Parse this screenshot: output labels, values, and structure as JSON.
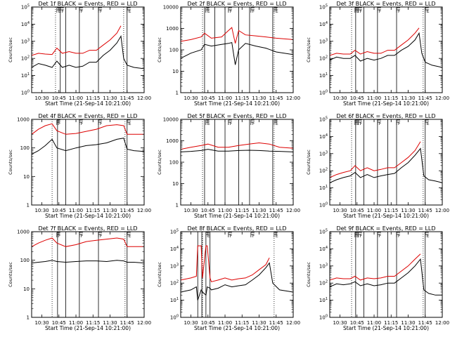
{
  "chart_data": [
    {
      "type": "line",
      "title": "Det 1f BLACK = Events, RED = LLD",
      "xlabel": "Start Time (21-Sep-14 10:21:00)",
      "ylabel": "Counts/sec",
      "log_y": true,
      "xlim": [
        10.35,
        12.0
      ],
      "ylim": [
        1,
        100000
      ],
      "x_ticks": [
        "10:30",
        "10:45",
        "11:00",
        "11:15",
        "11:30",
        "11:45",
        "12:00"
      ],
      "y_ticks": [
        "10^0",
        "10^1",
        "10^2",
        "10^3",
        "10^4",
        "10^5"
      ],
      "dotted_lines": [
        10.7,
        11.7
      ],
      "vertical_lines": [
        10.77,
        10.85,
        11.05,
        11.33,
        11.75
      ],
      "flag_markers": [
        {
          "x": 10.72,
          "label": "E"
        },
        {
          "x": 10.77,
          "label": "F"
        },
        {
          "x": 11.05,
          "label": "F"
        },
        {
          "x": 11.33,
          "label": "F"
        },
        {
          "x": 11.75,
          "label": "E"
        }
      ],
      "x": [
        10.35,
        10.45,
        10.55,
        10.65,
        10.72,
        10.8,
        10.9,
        11.0,
        11.1,
        11.2,
        11.3,
        11.4,
        11.5,
        11.6,
        11.66,
        11.7,
        11.75,
        11.85,
        12.0
      ],
      "series": [
        {
          "color": "#000000",
          "values": [
            30,
            50,
            40,
            30,
            70,
            30,
            40,
            30,
            35,
            60,
            60,
            150,
            300,
            800,
            2000,
            100,
            40,
            30,
            25
          ]
        },
        {
          "color": "#dd0000",
          "values": [
            150,
            200,
            180,
            170,
            400,
            200,
            250,
            200,
            200,
            300,
            300,
            600,
            1200,
            3000,
            8000,
            null,
            null,
            null,
            null
          ]
        }
      ]
    },
    {
      "type": "line",
      "title": "Det 2f BLACK = Events, RED = LLD",
      "xlabel": "Start Time (21-Sep-14 10:21:00)",
      "ylabel": "Counts/sec",
      "log_y": true,
      "xlim": [
        10.35,
        12.0
      ],
      "ylim": [
        1,
        10000
      ],
      "x_ticks": [
        "10:30",
        "10:45",
        "11:00",
        "11:15",
        "11:30",
        "11:45",
        "12:00"
      ],
      "y_ticks": [
        "1",
        "10",
        "100",
        "1000",
        "10000"
      ],
      "dotted_lines": [
        10.67,
        11.72
      ],
      "vertical_lines": [
        10.7,
        10.85,
        11.0,
        11.2,
        11.36,
        11.7
      ],
      "flag_markers": [
        {
          "x": 10.72,
          "label": "E"
        },
        {
          "x": 11.05,
          "label": "F"
        },
        {
          "x": 11.38,
          "label": "F"
        },
        {
          "x": 11.72,
          "label": "E"
        }
      ],
      "x": [
        10.35,
        10.5,
        10.65,
        10.7,
        10.8,
        10.95,
        11.05,
        11.1,
        11.15,
        11.2,
        11.3,
        11.45,
        11.6,
        11.75,
        12.0
      ],
      "series": [
        {
          "color": "#000000",
          "values": [
            40,
            70,
            100,
            180,
            150,
            180,
            200,
            220,
            20,
            100,
            200,
            150,
            120,
            80,
            60
          ]
        },
        {
          "color": "#dd0000",
          "values": [
            250,
            300,
            400,
            600,
            350,
            400,
            800,
            1100,
            200,
            800,
            500,
            450,
            400,
            350,
            300
          ]
        }
      ]
    },
    {
      "type": "line",
      "title": "Det 3f BLACK = Events, RED = LLD",
      "xlabel": "Start Time (21-Sep-14 10:21:00)",
      "ylabel": "Counts/sec",
      "log_y": true,
      "xlim": [
        10.35,
        12.0
      ],
      "ylim": [
        1,
        100000
      ],
      "x_ticks": [
        "10:30",
        "10:45",
        "11:00",
        "11:15",
        "11:30",
        "11:45",
        "12:00"
      ],
      "y_ticks": [
        "10^0",
        "10^1",
        "10^2",
        "10^3",
        "10^4",
        "10^5"
      ],
      "dotted_lines": [
        10.67,
        11.72
      ],
      "vertical_lines": [
        10.73,
        10.85,
        11.05,
        11.33,
        11.75
      ],
      "flag_markers": [
        {
          "x": 10.72,
          "label": "E"
        },
        {
          "x": 10.77,
          "label": "F"
        },
        {
          "x": 11.05,
          "label": "F"
        },
        {
          "x": 11.33,
          "label": "F"
        },
        {
          "x": 11.75,
          "label": "E"
        }
      ],
      "x": [
        10.35,
        10.45,
        10.55,
        10.65,
        10.72,
        10.8,
        10.9,
        11.0,
        11.1,
        11.2,
        11.3,
        11.4,
        11.5,
        11.6,
        11.66,
        11.7,
        11.75,
        11.85,
        12.0
      ],
      "series": [
        {
          "color": "#000000",
          "values": [
            80,
            120,
            100,
            100,
            150,
            70,
            100,
            80,
            100,
            150,
            150,
            300,
            500,
            1200,
            3000,
            200,
            60,
            40,
            30
          ]
        },
        {
          "color": "#dd0000",
          "values": [
            150,
            200,
            180,
            180,
            300,
            180,
            250,
            200,
            200,
            300,
            300,
            600,
            1200,
            3000,
            6000,
            null,
            null,
            null,
            null
          ]
        }
      ]
    },
    {
      "type": "line",
      "title": "Det 4f BLACK = Events, RED = LLD",
      "xlabel": "Start Time (21-Sep-14 10:21:00)",
      "ylabel": "Counts/sec",
      "log_y": true,
      "xlim": [
        10.35,
        12.0
      ],
      "ylim": [
        1,
        1000
      ],
      "x_ticks": [
        "10:30",
        "10:45",
        "11:00",
        "11:15",
        "11:30",
        "11:45",
        "12:00"
      ],
      "y_ticks": [
        "1",
        "10",
        "100",
        "1000"
      ],
      "dotted_lines": [
        10.65,
        11.72
      ],
      "vertical_lines": [
        10.73,
        10.85,
        11.05,
        11.33,
        11.75
      ],
      "flag_markers": [
        {
          "x": 10.72,
          "label": "F"
        },
        {
          "x": 11.05,
          "label": "F"
        },
        {
          "x": 11.33,
          "label": "F"
        },
        {
          "x": 11.75,
          "label": "E"
        }
      ],
      "x": [
        10.35,
        10.45,
        10.55,
        10.65,
        10.72,
        10.85,
        11.0,
        11.15,
        11.3,
        11.45,
        11.6,
        11.7,
        11.75,
        11.85,
        12.0
      ],
      "series": [
        {
          "color": "#000000",
          "values": [
            60,
            80,
            120,
            200,
            100,
            80,
            100,
            120,
            130,
            150,
            200,
            220,
            90,
            80,
            75
          ]
        },
        {
          "color": "#dd0000",
          "values": [
            300,
            450,
            600,
            700,
            400,
            300,
            320,
            380,
            450,
            600,
            650,
            600,
            300,
            300,
            300
          ]
        }
      ]
    },
    {
      "type": "line",
      "title": "Det 5f BLACK = Events, RED = LLD",
      "xlabel": "Start Time (21-Sep-14 10:21:00)",
      "ylabel": "Counts/sec",
      "log_y": true,
      "xlim": [
        10.35,
        12.0
      ],
      "ylim": [
        1,
        10000
      ],
      "x_ticks": [
        "10:30",
        "10:45",
        "11:00",
        "11:15",
        "11:30",
        "11:45",
        "12:00"
      ],
      "y_ticks": [
        "1",
        "10",
        "100",
        "1000",
        "10000"
      ],
      "dotted_lines": [
        10.67,
        11.72
      ],
      "vertical_lines": [
        10.7,
        10.85,
        11.0,
        11.2,
        11.36,
        11.7
      ],
      "flag_markers": [
        {
          "x": 10.72,
          "label": "E"
        },
        {
          "x": 11.05,
          "label": "F"
        },
        {
          "x": 11.38,
          "label": "F"
        },
        {
          "x": 11.72,
          "label": "E"
        }
      ],
      "x": [
        10.35,
        10.5,
        10.65,
        10.75,
        10.9,
        11.05,
        11.2,
        11.35,
        11.5,
        11.65,
        11.8,
        12.0
      ],
      "series": [
        {
          "color": "#000000",
          "values": [
            300,
            320,
            350,
            400,
            330,
            330,
            350,
            360,
            350,
            330,
            320,
            300
          ]
        },
        {
          "color": "#dd0000",
          "values": [
            400,
            500,
            600,
            700,
            500,
            500,
            600,
            700,
            800,
            700,
            500,
            450
          ]
        }
      ]
    },
    {
      "type": "line",
      "title": "Det 6f BLACK = Events, RED = LLD",
      "xlabel": "Start Time (21-Sep-14 10:21:00)",
      "ylabel": "Counts/sec",
      "log_y": true,
      "xlim": [
        10.35,
        12.0
      ],
      "ylim": [
        1,
        100000
      ],
      "x_ticks": [
        "10:30",
        "10:45",
        "11:00",
        "11:15",
        "11:30",
        "11:45",
        "12:00"
      ],
      "y_ticks": [
        "10^0",
        "10^1",
        "10^2",
        "10^3",
        "10^4",
        "10^5"
      ],
      "dotted_lines": [
        10.67,
        11.72
      ],
      "vertical_lines": [
        10.73,
        10.85,
        11.05,
        11.2,
        11.33,
        11.75
      ],
      "flag_markers": [
        {
          "x": 10.72,
          "label": "E"
        },
        {
          "x": 10.77,
          "label": "F"
        },
        {
          "x": 11.05,
          "label": "F"
        },
        {
          "x": 11.33,
          "label": "F"
        },
        {
          "x": 11.75,
          "label": "E"
        }
      ],
      "x": [
        10.35,
        10.45,
        10.55,
        10.65,
        10.72,
        10.8,
        10.9,
        11.0,
        11.1,
        11.2,
        11.3,
        11.4,
        11.5,
        11.6,
        11.68,
        11.73,
        11.8,
        11.9,
        12.0
      ],
      "series": [
        {
          "color": "#000000",
          "values": [
            20,
            30,
            40,
            50,
            80,
            40,
            60,
            40,
            50,
            60,
            70,
            150,
            300,
            800,
            2000,
            50,
            30,
            25,
            20
          ]
        },
        {
          "color": "#dd0000",
          "values": [
            40,
            60,
            80,
            100,
            200,
            100,
            150,
            100,
            120,
            150,
            150,
            300,
            600,
            1500,
            5000,
            null,
            null,
            null,
            null
          ]
        }
      ]
    },
    {
      "type": "line",
      "title": "Det 7f BLACK = Events, RED = LLD",
      "xlabel": "Start Time (21-Sep-14 10:21:00)",
      "ylabel": "Counts/sec",
      "log_y": true,
      "xlim": [
        10.35,
        12.0
      ],
      "ylim": [
        1,
        1000
      ],
      "x_ticks": [
        "10:30",
        "10:45",
        "11:00",
        "11:15",
        "11:30",
        "11:45",
        "12:00"
      ],
      "y_ticks": [
        "1",
        "10",
        "100",
        "1000"
      ],
      "dotted_lines": [
        10.65,
        11.72
      ],
      "vertical_lines": [
        10.73,
        10.85,
        11.05,
        11.33,
        11.75
      ],
      "flag_markers": [
        {
          "x": 10.72,
          "label": "F"
        },
        {
          "x": 11.05,
          "label": "F"
        },
        {
          "x": 11.33,
          "label": "F"
        },
        {
          "x": 11.75,
          "label": "E"
        }
      ],
      "x": [
        10.35,
        10.45,
        10.55,
        10.65,
        10.72,
        10.85,
        11.0,
        11.15,
        11.3,
        11.45,
        11.6,
        11.7,
        11.75,
        11.85,
        12.0
      ],
      "series": [
        {
          "color": "#000000",
          "values": [
            80,
            85,
            90,
            100,
            90,
            85,
            90,
            95,
            95,
            90,
            100,
            95,
            85,
            85,
            80
          ]
        },
        {
          "color": "#dd0000",
          "values": [
            300,
            400,
            500,
            600,
            400,
            300,
            350,
            450,
            500,
            550,
            600,
            550,
            300,
            300,
            300
          ]
        }
      ]
    },
    {
      "type": "line",
      "title": "Det 8f BLACK = Events, RED = LLD",
      "xlabel": "Start Time (21-Sep-14 10:21:00)",
      "ylabel": "Counts/sec",
      "log_y": true,
      "xlim": [
        10.35,
        12.0
      ],
      "ylim": [
        1,
        100000
      ],
      "x_ticks": [
        "10:30",
        "10:45",
        "11:00",
        "11:15",
        "11:30",
        "11:45",
        "12:00"
      ],
      "y_ticks": [
        "10^0",
        "10^1",
        "10^2",
        "10^3",
        "10^4",
        "10^5"
      ],
      "dotted_lines": [
        10.67,
        11.72
      ],
      "vertical_lines": [
        10.6,
        10.66,
        10.72,
        10.78
      ],
      "flag_markers": [
        {
          "x": 10.72,
          "label": "E"
        },
        {
          "x": 11.05,
          "label": "F"
        },
        {
          "x": 11.38,
          "label": "F"
        },
        {
          "x": 11.72,
          "label": "E"
        }
      ],
      "x": [
        10.35,
        10.5,
        10.58,
        10.6,
        10.65,
        10.67,
        10.72,
        10.74,
        10.78,
        10.8,
        10.9,
        11.0,
        11.1,
        11.2,
        11.3,
        11.4,
        11.5,
        11.6,
        11.65,
        11.7,
        11.8,
        12.0
      ],
      "series": [
        {
          "color": "#000000",
          "values": [
            30,
            40,
            60,
            10,
            40,
            30,
            20,
            60,
            50,
            40,
            50,
            80,
            60,
            70,
            80,
            150,
            300,
            800,
            1500,
            100,
            40,
            30
          ]
        },
        {
          "color": "#dd0000",
          "values": [
            150,
            200,
            250,
            15000,
            15000,
            200,
            15000,
            15000,
            200,
            120,
            150,
            200,
            150,
            180,
            200,
            300,
            600,
            1200,
            3000,
            null,
            null,
            null
          ]
        }
      ]
    },
    {
      "type": "line",
      "title": "Det 9f BLACK = Events, RED = LLD",
      "xlabel": "Start Time (21-Sep-14 10:21:00)",
      "ylabel": "Counts/sec",
      "log_y": true,
      "xlim": [
        10.35,
        12.0
      ],
      "ylim": [
        1,
        100000
      ],
      "x_ticks": [
        "10:30",
        "10:45",
        "11:00",
        "11:15",
        "11:30",
        "11:45",
        "12:00"
      ],
      "y_ticks": [
        "10^0",
        "10^1",
        "10^2",
        "10^3",
        "10^4",
        "10^5"
      ],
      "dotted_lines": [
        10.67,
        11.72
      ],
      "vertical_lines": [
        10.73,
        10.85,
        11.05,
        11.2,
        11.33,
        11.75
      ],
      "flag_markers": [
        {
          "x": 10.72,
          "label": "E"
        },
        {
          "x": 10.77,
          "label": "F"
        },
        {
          "x": 11.05,
          "label": "F"
        },
        {
          "x": 11.33,
          "label": "F"
        },
        {
          "x": 11.75,
          "label": "E"
        }
      ],
      "x": [
        10.35,
        10.45,
        10.55,
        10.65,
        10.72,
        10.8,
        10.9,
        11.0,
        11.1,
        11.2,
        11.3,
        11.4,
        11.5,
        11.6,
        11.68,
        11.73,
        11.8,
        11.9,
        12.0
      ],
      "series": [
        {
          "color": "#000000",
          "values": [
            60,
            90,
            80,
            90,
            120,
            70,
            90,
            70,
            80,
            100,
            100,
            200,
            400,
            1000,
            2500,
            40,
            25,
            20,
            20
          ]
        },
        {
          "color": "#dd0000",
          "values": [
            150,
            200,
            180,
            180,
            250,
            150,
            200,
            180,
            200,
            250,
            250,
            500,
            1000,
            2500,
            5000,
            null,
            null,
            null,
            null
          ]
        }
      ]
    }
  ]
}
